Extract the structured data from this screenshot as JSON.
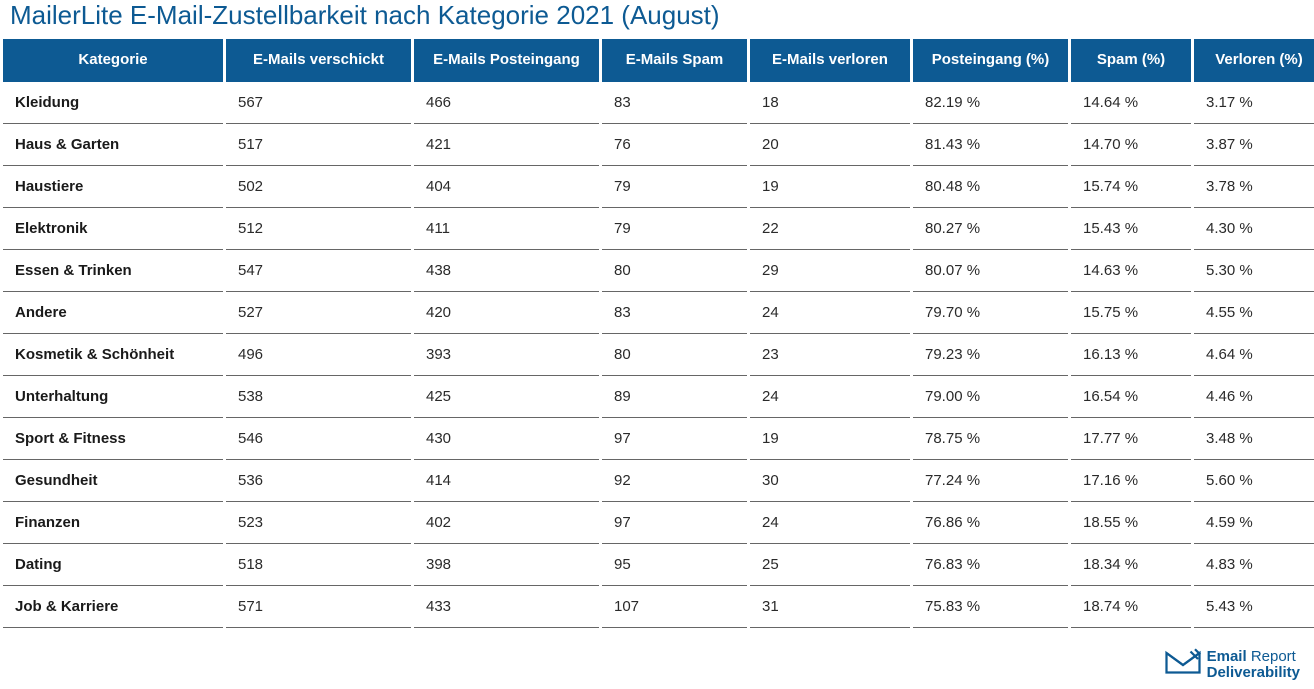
{
  "title": "MailerLite E-Mail-Zustellbarkeit nach Kategorie 2021 (August)",
  "table": {
    "type": "table",
    "header_bg": "#0d5a93",
    "header_fg": "#ffffff",
    "row_border": "#666666",
    "text_color": "#2a2a2a",
    "columns": [
      "Kategorie",
      "E-Mails verschickt",
      "E-Mails Posteingang",
      "E-Mails Spam",
      "E-Mails verloren",
      "Posteingang (%)",
      "Spam (%)",
      "Verloren (%)"
    ],
    "rows": [
      [
        "Kleidung",
        "567",
        "466",
        "83",
        "18",
        "82.19 %",
        "14.64 %",
        "3.17 %"
      ],
      [
        "Haus & Garten",
        "517",
        "421",
        "76",
        "20",
        "81.43 %",
        "14.70 %",
        "3.87 %"
      ],
      [
        "Haustiere",
        "502",
        "404",
        "79",
        "19",
        "80.48 %",
        "15.74 %",
        "3.78 %"
      ],
      [
        "Elektronik",
        "512",
        "411",
        "79",
        "22",
        "80.27 %",
        "15.43 %",
        "4.30 %"
      ],
      [
        "Essen & Trinken",
        "547",
        "438",
        "80",
        "29",
        "80.07 %",
        "14.63 %",
        "5.30 %"
      ],
      [
        "Andere",
        "527",
        "420",
        "83",
        "24",
        "79.70 %",
        "15.75 %",
        "4.55 %"
      ],
      [
        "Kosmetik & Schönheit",
        "496",
        "393",
        "80",
        "23",
        "79.23 %",
        "16.13 %",
        "4.64 %"
      ],
      [
        "Unterhaltung",
        "538",
        "425",
        "89",
        "24",
        "79.00 %",
        "16.54 %",
        "4.46 %"
      ],
      [
        "Sport & Fitness",
        "546",
        "430",
        "97",
        "19",
        "78.75 %",
        "17.77 %",
        "3.48 %"
      ],
      [
        "Gesundheit",
        "536",
        "414",
        "92",
        "30",
        "77.24 %",
        "17.16 %",
        "5.60 %"
      ],
      [
        "Finanzen",
        "523",
        "402",
        "97",
        "24",
        "76.86 %",
        "18.55 %",
        "4.59 %"
      ],
      [
        "Dating",
        "518",
        "398",
        "95",
        "25",
        "76.83 %",
        "18.34 %",
        "4.83 %"
      ],
      [
        "Job & Karriere",
        "571",
        "433",
        "107",
        "31",
        "75.83 %",
        "18.74 %",
        "5.43 %"
      ]
    ]
  },
  "footer": {
    "brand1a": "Email",
    "brand1b": "Report",
    "brand2": "Deliverability",
    "logo_color": "#0d5a93"
  }
}
